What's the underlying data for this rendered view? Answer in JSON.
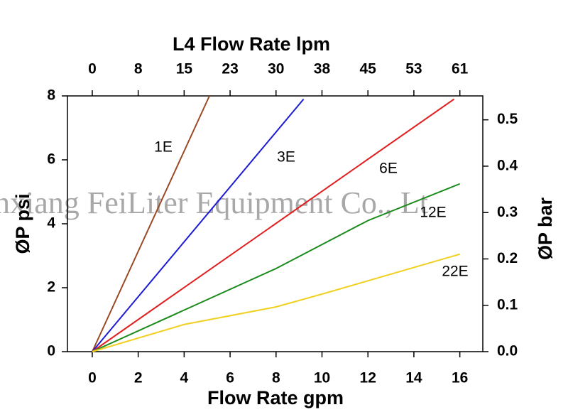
{
  "chart_data": {
    "type": "line",
    "title": "L4 Flow Rate lpm",
    "x_label": "Flow Rate gpm",
    "y_label": "ØP psi",
    "y2_label": "ØP bar",
    "watermark": "nxiang FeiLiter Equipment Co., Lt",
    "xlim": [
      -1.08,
      17
    ],
    "xticks": [
      0,
      2,
      4,
      6,
      8,
      10,
      12,
      14,
      16
    ],
    "x2lim": [
      -4.09,
      64.35
    ],
    "x2ticks": [
      0,
      {
        "value": 7.57,
        "label": "8"
      },
      {
        "value": 15.14,
        "label": "15"
      },
      {
        "value": 22.71,
        "label": "23"
      },
      {
        "value": 30.28,
        "label": "30"
      },
      {
        "value": 37.85,
        "label": "38"
      },
      {
        "value": 45.42,
        "label": "45"
      },
      {
        "value": 52.99,
        "label": "53"
      },
      {
        "value": 60.57,
        "label": "61"
      }
    ],
    "ylim": [
      0,
      8
    ],
    "yticks": [
      0,
      2,
      4,
      6,
      8
    ],
    "y2lim": [
      0,
      0.5516
    ],
    "y2ticks": [
      {
        "value": 0,
        "label": "0.0"
      },
      0.1,
      0.2,
      0.3,
      0.4,
      0.5
    ],
    "series": [
      {
        "name": "1E",
        "color": "#9a4a24",
        "x": [
          0,
          5.1
        ],
        "values": [
          0,
          8
        ]
      },
      {
        "name": "3E",
        "color": "#1c1cd4",
        "x": [
          0,
          9.2
        ],
        "values": [
          0,
          7.9
        ]
      },
      {
        "name": "6E",
        "color": "#e02020",
        "x": [
          0,
          15.75
        ],
        "values": [
          0,
          7.9
        ]
      },
      {
        "name": "12E",
        "color": "#1a8a1a",
        "x": [
          0,
          4,
          8,
          12,
          16
        ],
        "values": [
          0,
          1.3,
          2.6,
          4.1,
          5.25
        ]
      },
      {
        "name": "22E",
        "color": "#f0d020",
        "x": [
          0,
          4,
          8,
          10,
          16
        ],
        "values": [
          0,
          0.85,
          1.4,
          1.8,
          3.05
        ]
      }
    ]
  }
}
